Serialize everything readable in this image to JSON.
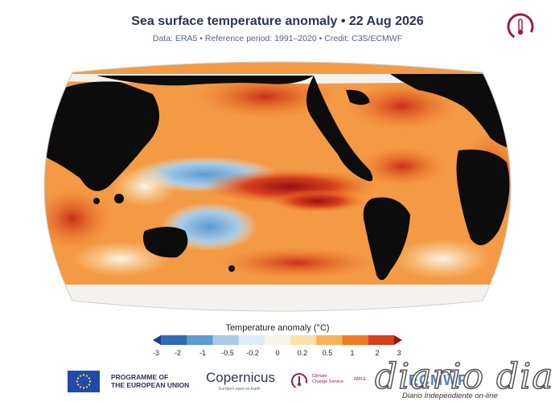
{
  "header": {
    "title": "Sea surface temperature anomaly • 22 Aug 2026",
    "subtitle": "Data: ERA5 • Reference period: 1991–2020 • Credit: C3S/ECMWF"
  },
  "legend": {
    "title": "Temperature anomaly (°C)",
    "ticks": [
      "-3",
      "-2",
      "-1",
      "-0.5",
      "-0.2",
      "0",
      "0.2",
      "0.5",
      "1",
      "2",
      "3"
    ],
    "colors": [
      "#1f3b8c",
      "#2f6cb5",
      "#5d9bd1",
      "#a7cbe8",
      "#dcebf5",
      "#f7f4ea",
      "#fbe0a8",
      "#f7b25a",
      "#ef7a26",
      "#d6401c",
      "#9c0f15"
    ]
  },
  "footer": {
    "eu_line1": "PROGRAMME OF",
    "eu_line2": "THE EUROPEAN UNION",
    "copernicus": "Copernicus",
    "copernicus_tag": "Europe's eyes on Earth",
    "cc_line1": "Climate",
    "cc_line2": "Change Service",
    "implemented": "IMPLE...",
    "ecmwf": "ECMWF"
  },
  "watermark": {
    "name": "diario dia",
    "tagline": "Diario Independiente on-line"
  }
}
